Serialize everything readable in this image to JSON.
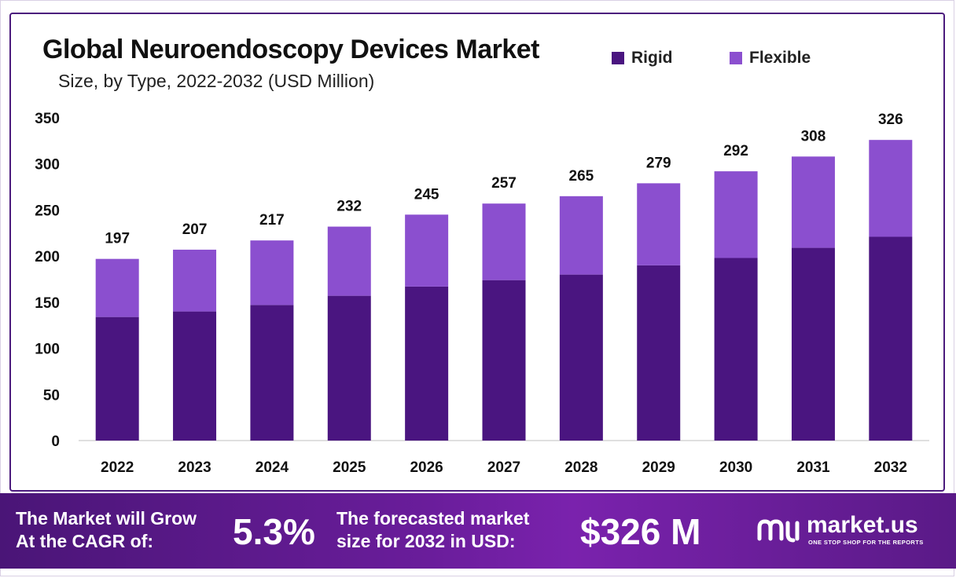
{
  "header": {
    "title": "Global Neuroendoscopy Devices Market",
    "subtitle": "Size, by Type, 2022-2032 (USD Million)"
  },
  "legend": [
    {
      "label": "Rigid",
      "color": "#4a1580"
    },
    {
      "label": "Flexible",
      "color": "#8b4fcf"
    }
  ],
  "chart_data": {
    "type": "bar",
    "stacked": true,
    "title": "Global Neuroendoscopy Devices Market",
    "subtitle": "Size, by Type, 2022-2032 (USD Million)",
    "categories": [
      "2022",
      "2023",
      "2024",
      "2025",
      "2026",
      "2027",
      "2028",
      "2029",
      "2030",
      "2031",
      "2032"
    ],
    "series": [
      {
        "name": "Rigid",
        "color": "#4a1580",
        "values": [
          134,
          140,
          147,
          157,
          167,
          174,
          180,
          190,
          198,
          209,
          221
        ]
      },
      {
        "name": "Flexible",
        "color": "#8b4fcf",
        "values": [
          63,
          67,
          70,
          75,
          78,
          83,
          85,
          89,
          94,
          99,
          105
        ]
      }
    ],
    "totals": [
      197,
      207,
      217,
      232,
      245,
      257,
      265,
      279,
      292,
      308,
      326
    ],
    "total_labels": [
      "197",
      "207",
      "217",
      "232",
      "245",
      "257",
      "265",
      "279",
      "292",
      "308",
      "326"
    ],
    "yticks": [
      "0",
      "50",
      "100",
      "150",
      "200",
      "250",
      "300",
      "350"
    ],
    "ylim": [
      0,
      350
    ],
    "grid": false,
    "legend_position": "top-right"
  },
  "footer": {
    "cagr_text_line1": "The Market will Grow",
    "cagr_text_line2": "At the CAGR of:",
    "cagr_value": "5.3%",
    "forecast_text_line1": "The forecasted market",
    "forecast_text_line2": "size for 2032 in USD:",
    "forecast_value": "$326 M",
    "brand_name": "market.us",
    "brand_tagline": "ONE STOP SHOP FOR THE REPORTS"
  }
}
